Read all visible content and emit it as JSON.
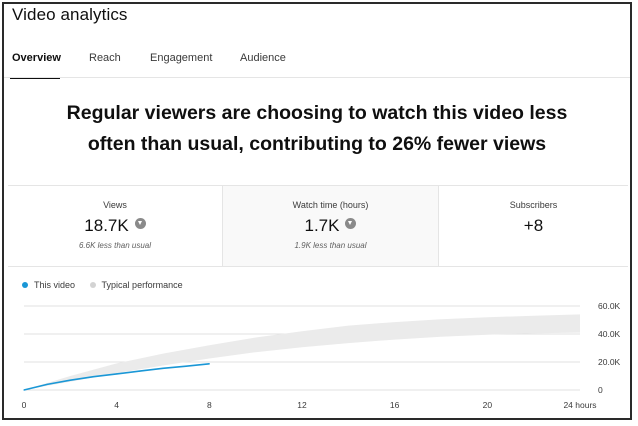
{
  "window": {
    "title": "Video analytics"
  },
  "tabs": [
    {
      "label": "Overview",
      "active": true
    },
    {
      "label": "Reach",
      "active": false
    },
    {
      "label": "Engagement",
      "active": false
    },
    {
      "label": "Audience",
      "active": false
    }
  ],
  "headline": {
    "line1": "Regular viewers are choosing to watch this video less",
    "line2": "often than usual, contributing to 26% fewer views"
  },
  "metrics": [
    {
      "label": "Views",
      "value": "18.7K",
      "note": "6.6K less than usual",
      "trend": "down-icon"
    },
    {
      "label": "Watch time (hours)",
      "value": "1.7K",
      "note": "1.9K less than usual",
      "trend": "down-icon"
    },
    {
      "label": "Subscribers",
      "value": "+8",
      "note": "",
      "trend": ""
    }
  ],
  "legend": [
    {
      "label": "This video",
      "color": "#1a97d6"
    },
    {
      "label": "Typical performance",
      "color": "#d3d3d3"
    }
  ],
  "colors": {
    "this_video": "#1a97d6",
    "typical_band": "#ebebeb",
    "grid": "#e0e0e0"
  },
  "chart_data": {
    "type": "area",
    "x_unit": "hours",
    "x_ticks": [
      "0",
      "4",
      "8",
      "12",
      "16",
      "20",
      "24 hours"
    ],
    "x_tick_values": [
      0,
      4,
      8,
      12,
      16,
      20,
      24
    ],
    "y_ticks": [
      "0",
      "20.0K",
      "40.0K",
      "60.0K"
    ],
    "y_tick_values": [
      0,
      20000,
      40000,
      60000
    ],
    "ylim": [
      0,
      60000
    ],
    "xlim": [
      0,
      24
    ],
    "series": [
      {
        "name": "This video",
        "type": "line",
        "x": [
          0,
          1,
          2,
          3,
          4,
          5,
          6,
          7,
          8
        ],
        "y": [
          0,
          4000,
          7000,
          9500,
          11500,
          13500,
          15500,
          17000,
          18700
        ]
      },
      {
        "name": "Typical performance",
        "type": "band",
        "x": [
          0,
          2,
          4,
          6,
          8,
          10,
          12,
          14,
          16,
          18,
          20,
          22,
          24
        ],
        "upper": [
          0,
          10000,
          19000,
          26000,
          32000,
          37500,
          42000,
          46000,
          48500,
          50500,
          52000,
          53000,
          54000
        ],
        "lower": [
          0,
          6000,
          12000,
          17500,
          22500,
          27000,
          30500,
          33500,
          36000,
          38000,
          39500,
          40500,
          41000
        ]
      }
    ],
    "grid": true
  }
}
